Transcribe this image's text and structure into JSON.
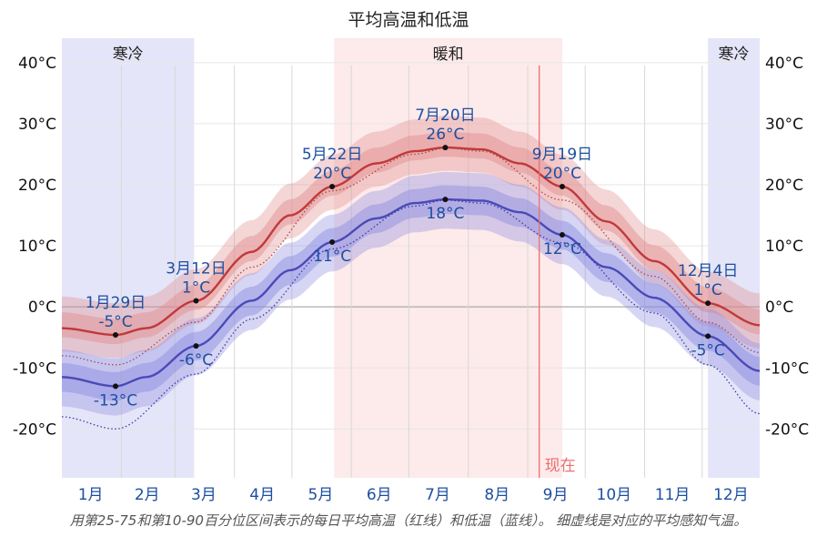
{
  "chart_data": {
    "type": "area",
    "title": "平均高温和低温",
    "caption": "用第25-75和第10-90百分位区间表示的每日平均高温（红线）和低温（蓝线）。 细虚线是对应的平均感知气温。",
    "x_axis_months": [
      "1月",
      "2月",
      "3月",
      "4月",
      "5月",
      "6月",
      "7月",
      "8月",
      "9月",
      "10月",
      "11月",
      "12月"
    ],
    "y_ticks": [
      {
        "value": 40,
        "label": "40°C"
      },
      {
        "value": 30,
        "label": "30°C"
      },
      {
        "value": 20,
        "label": "20°C"
      },
      {
        "value": 10,
        "label": "10°C"
      },
      {
        "value": 0,
        "label": "0°C"
      },
      {
        "value": -10,
        "label": "-10°C"
      },
      {
        "value": -20,
        "label": "-20°C"
      }
    ],
    "ylim": [
      -28,
      44
    ],
    "seasons": [
      {
        "label": "寒冷",
        "start_day": 1,
        "end_day": 70,
        "color": "#e0e0f8"
      },
      {
        "label": "暖和",
        "start_day": 143,
        "end_day": 262,
        "color": "#fde6e6"
      },
      {
        "label": "寒冷",
        "start_day": 338,
        "end_day": 365,
        "color": "#e0e0f8"
      }
    ],
    "now": {
      "label": "现在",
      "day": 250,
      "color": "#e87070"
    },
    "series": [
      {
        "name": "平均高温",
        "color": "#c0393b",
        "points": [
          [
            1,
            -3.5
          ],
          [
            29,
            -4.6
          ],
          [
            45,
            -3.5
          ],
          [
            71,
            1.0
          ],
          [
            100,
            9.0
          ],
          [
            120,
            15.0
          ],
          [
            142,
            19.7
          ],
          [
            165,
            23.5
          ],
          [
            185,
            25.5
          ],
          [
            201,
            26.1
          ],
          [
            220,
            25.8
          ],
          [
            240,
            23.5
          ],
          [
            262,
            19.7
          ],
          [
            285,
            14.0
          ],
          [
            310,
            7.5
          ],
          [
            338,
            0.6
          ],
          [
            365,
            -3.0
          ]
        ],
        "band_25_75": [
          1.5,
          2.6
        ],
        "band_10_90": [
          3.8,
          5.2
        ]
      },
      {
        "name": "平均低温",
        "color": "#4a4ab8",
        "points": [
          [
            1,
            -11.5
          ],
          [
            29,
            -13.0
          ],
          [
            45,
            -11.5
          ],
          [
            71,
            -6.4
          ],
          [
            100,
            1.0
          ],
          [
            120,
            6.0
          ],
          [
            142,
            10.6
          ],
          [
            165,
            14.5
          ],
          [
            185,
            17.0
          ],
          [
            201,
            17.6
          ],
          [
            220,
            17.4
          ],
          [
            240,
            15.5
          ],
          [
            262,
            11.8
          ],
          [
            285,
            6.5
          ],
          [
            310,
            1.5
          ],
          [
            338,
            -4.8
          ],
          [
            365,
            -10.5
          ]
        ],
        "band_25_75": [
          2.4,
          2.3
        ],
        "band_10_90": [
          4.8,
          4.5
        ]
      },
      {
        "name": "高温感知",
        "color": "#b04848",
        "style": "dotted",
        "points": [
          [
            1,
            -8.0
          ],
          [
            29,
            -9.5
          ],
          [
            71,
            -2.5
          ],
          [
            100,
            6.5
          ],
          [
            142,
            19.0
          ],
          [
            185,
            25.0
          ],
          [
            201,
            26.0
          ],
          [
            220,
            25.5
          ],
          [
            262,
            17.5
          ],
          [
            310,
            5.0
          ],
          [
            338,
            -2.5
          ],
          [
            365,
            -7.5
          ]
        ]
      },
      {
        "name": "低温感知",
        "color": "#3a3aa8",
        "style": "dotted",
        "points": [
          [
            1,
            -18.0
          ],
          [
            29,
            -20.0
          ],
          [
            71,
            -11.0
          ],
          [
            100,
            -2.0
          ],
          [
            142,
            9.5
          ],
          [
            185,
            16.5
          ],
          [
            201,
            17.5
          ],
          [
            220,
            17.0
          ],
          [
            262,
            10.5
          ],
          [
            310,
            -1.0
          ],
          [
            338,
            -9.5
          ],
          [
            365,
            -17.5
          ]
        ]
      }
    ],
    "annotations": [
      {
        "day": 29,
        "value": -4.6,
        "date": "1月29日",
        "temp": "-5°C",
        "place": "above"
      },
      {
        "day": 29,
        "value": -13.0,
        "date": "",
        "temp": "-13°C",
        "place": "below"
      },
      {
        "day": 71,
        "value": 1.0,
        "date": "3月12日",
        "temp": "1°C",
        "place": "above"
      },
      {
        "day": 71,
        "value": -6.4,
        "date": "",
        "temp": "-6°C",
        "place": "below"
      },
      {
        "day": 142,
        "value": 19.7,
        "date": "5月22日",
        "temp": "20°C",
        "place": "above"
      },
      {
        "day": 142,
        "value": 10.6,
        "date": "",
        "temp": "11°C",
        "place": "below"
      },
      {
        "day": 201,
        "value": 26.1,
        "date": "7月20日",
        "temp": "26°C",
        "place": "above"
      },
      {
        "day": 201,
        "value": 17.6,
        "date": "",
        "temp": "18°C",
        "place": "below"
      },
      {
        "day": 262,
        "value": 19.7,
        "date": "9月19日",
        "temp": "20°C",
        "place": "above"
      },
      {
        "day": 262,
        "value": 11.8,
        "date": "",
        "temp": "12°C",
        "place": "below"
      },
      {
        "day": 338,
        "value": 0.6,
        "date": "12月4日",
        "temp": "1°C",
        "place": "above"
      },
      {
        "day": 338,
        "value": -4.8,
        "date": "",
        "temp": "-5°C",
        "place": "below"
      }
    ],
    "colors": {
      "high_line": "#c0393b",
      "low_line": "#4a4ab8",
      "annotation_text": "#1c4fa0",
      "now_line": "#e87070"
    }
  }
}
